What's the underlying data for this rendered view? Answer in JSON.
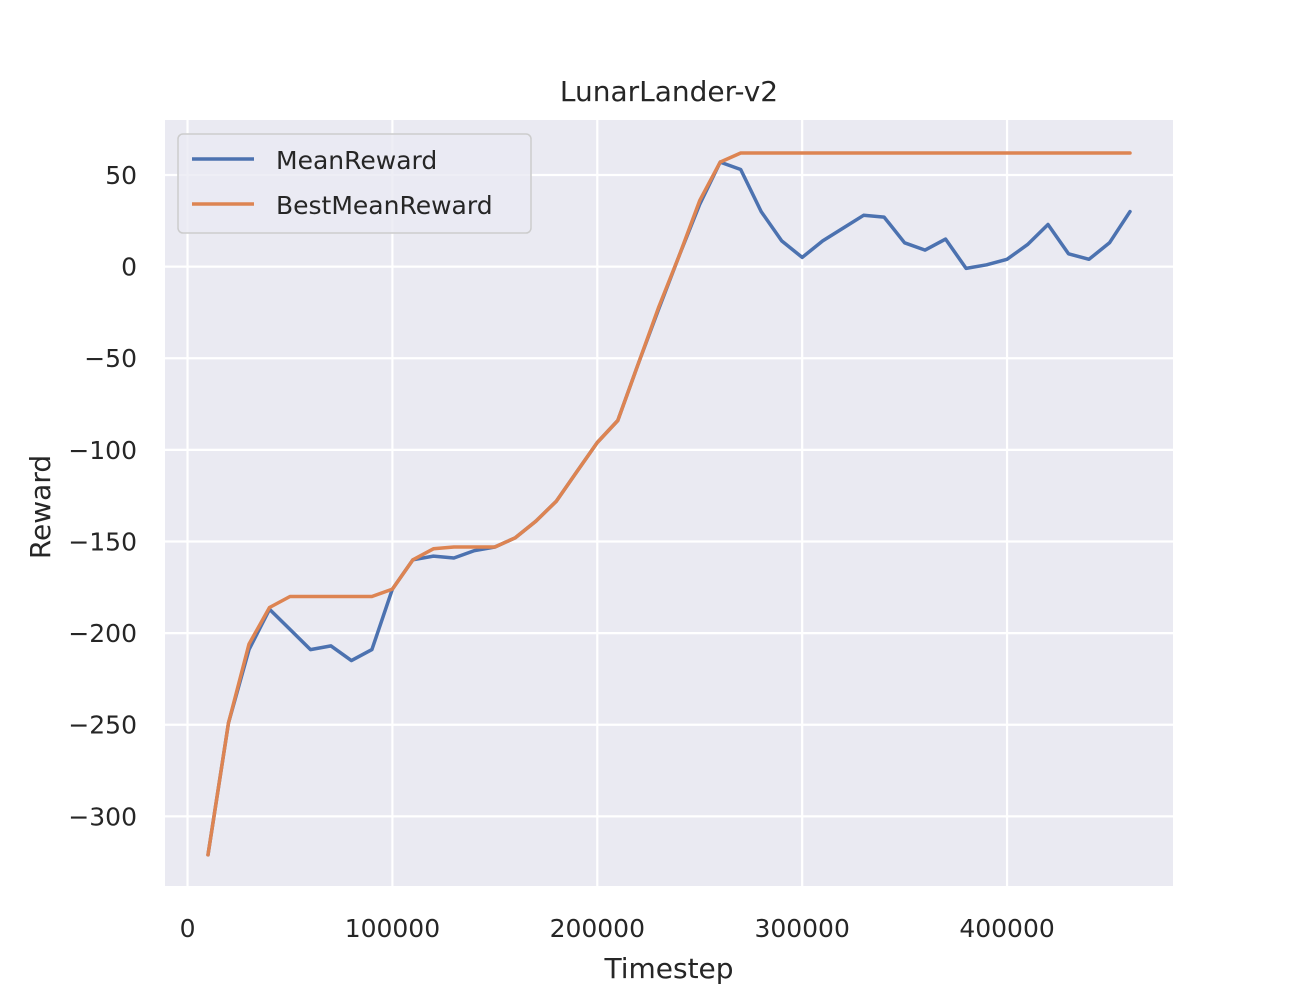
{
  "chart_data": {
    "type": "line",
    "title": "LunarLander-v2",
    "xlabel": "Timestep",
    "ylabel": "Reward",
    "xlim": [
      -11000,
      481000
    ],
    "ylim": [
      -338,
      80
    ],
    "xticks": [
      0,
      100000,
      200000,
      300000,
      400000
    ],
    "yticks": [
      50,
      0,
      -50,
      -100,
      -150,
      -200,
      -250,
      -300
    ],
    "ytick_labels": [
      "50",
      "0",
      "−50",
      "−100",
      "−150",
      "−200",
      "−250",
      "−300"
    ],
    "grid": true,
    "legend_position": "top-left",
    "background": "#eaeaf2",
    "x": [
      10000,
      20000,
      30000,
      40000,
      50000,
      60000,
      70000,
      80000,
      90000,
      100000,
      110000,
      120000,
      130000,
      140000,
      150000,
      160000,
      170000,
      180000,
      190000,
      200000,
      210000,
      220000,
      230000,
      240000,
      250000,
      260000,
      270000,
      280000,
      290000,
      300000,
      310000,
      320000,
      330000,
      340000,
      350000,
      360000,
      370000,
      380000,
      390000,
      400000,
      410000,
      420000,
      430000,
      440000,
      450000,
      460000
    ],
    "series": [
      {
        "name": "MeanReward",
        "color": "#4c72b0",
        "values": [
          -321,
          -249,
          -209,
          -187,
          -198,
          -209,
          -207,
          -215,
          -209,
          -176,
          -160,
          -158,
          -159,
          -155,
          -153,
          -148,
          -139,
          -128,
          -112,
          -96,
          -84,
          -53,
          -23,
          6,
          34,
          57,
          53,
          30,
          14,
          5,
          14,
          21,
          28,
          27,
          13,
          9,
          15,
          -1,
          1,
          4,
          12,
          23,
          7,
          4,
          13,
          30
        ]
      },
      {
        "name": "BestMeanReward",
        "color": "#dd8452",
        "values": [
          -321,
          -249,
          -206,
          -186,
          -180,
          -180,
          -180,
          -180,
          -180,
          -176,
          -160,
          -154,
          -153,
          -153,
          -153,
          -148,
          -139,
          -128,
          -112,
          -96,
          -84,
          -53,
          -22,
          6,
          36,
          57,
          62,
          62,
          62,
          62,
          62,
          62,
          62,
          62,
          62,
          62,
          62,
          62,
          62,
          62,
          62,
          62,
          62,
          62,
          62,
          62
        ]
      }
    ]
  }
}
